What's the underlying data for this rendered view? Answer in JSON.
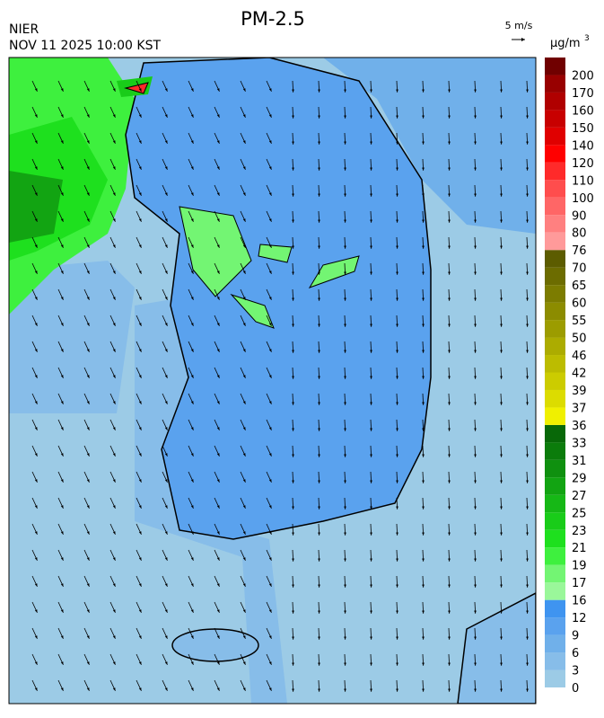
{
  "header": {
    "title": "PM-2.5",
    "agency": "NIER",
    "datetime": "NOV 11 2025 10:00 KST",
    "wind_scale": "5 m/s"
  },
  "legend": {
    "unit": "μg/m",
    "unit_superscript": "3",
    "levels": [
      0,
      3,
      6,
      9,
      12,
      16,
      17,
      19,
      21,
      23,
      25,
      27,
      29,
      31,
      33,
      36,
      37,
      39,
      42,
      46,
      50,
      55,
      60,
      65,
      70,
      76,
      80,
      90,
      100,
      110,
      120,
      140,
      150,
      160,
      170,
      200
    ],
    "colors": [
      "#9ccbe6",
      "#87bde9",
      "#70b0ea",
      "#5aa2ee",
      "#3f94f0",
      "#9af79a",
      "#73f573",
      "#3ef03e",
      "#1ee01e",
      "#19cc19",
      "#16b816",
      "#12a412",
      "#0f900f",
      "#0b7c0b",
      "#086808",
      "#f0f000",
      "#dcdc00",
      "#cccc00",
      "#bcbc00",
      "#acac00",
      "#9c9c00",
      "#8c8c00",
      "#7c7c00",
      "#6c6c00",
      "#5c5c00",
      "#ff9a9a",
      "#ff8080",
      "#ff6666",
      "#ff4d4d",
      "#ff2a2a",
      "#ff0000",
      "#e00000",
      "#c80000",
      "#b00000",
      "#980000",
      "#700000"
    ]
  }
}
